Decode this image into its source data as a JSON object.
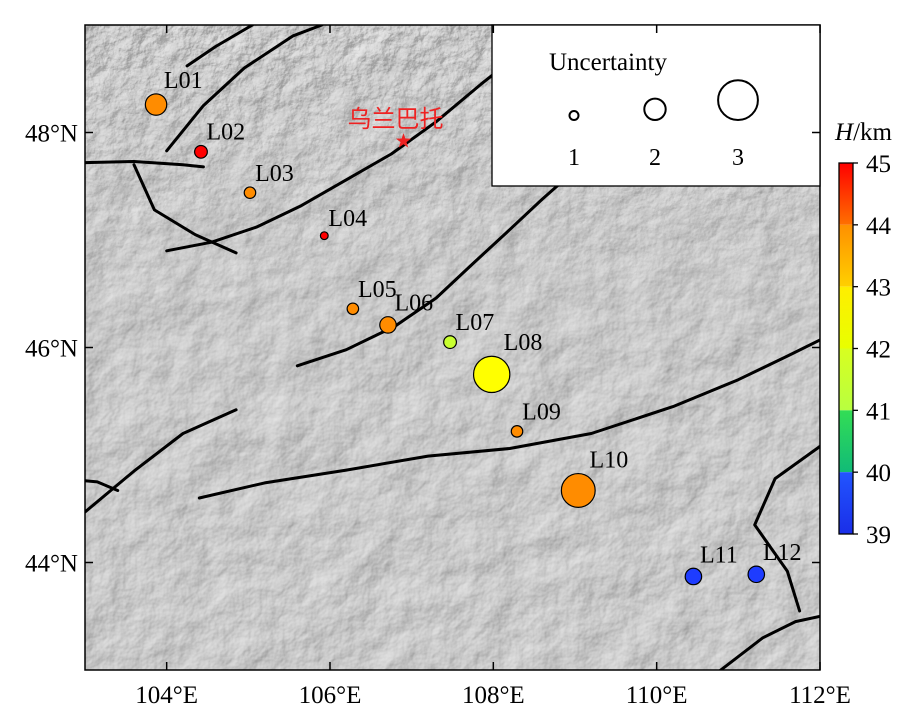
{
  "map": {
    "x_axis": {
      "min": 103,
      "max": 112,
      "ticks": [
        {
          "value": 104,
          "label": "104°E"
        },
        {
          "value": 106,
          "label": "106°E"
        },
        {
          "value": 108,
          "label": "108°E"
        },
        {
          "value": 110,
          "label": "110°E"
        },
        {
          "value": 112,
          "label": "112°E"
        }
      ]
    },
    "y_axis": {
      "min": 43,
      "max": 49,
      "ticks": [
        {
          "value": 44,
          "label": "44°N"
        },
        {
          "value": 46,
          "label": "46°N"
        },
        {
          "value": 48,
          "label": "48°N"
        }
      ]
    },
    "city": {
      "name": "乌兰巴托",
      "lon": 106.9,
      "lat": 47.92,
      "color": "#ee2222"
    },
    "stations": [
      {
        "id": "L01",
        "lon": 103.87,
        "lat": 48.26,
        "h": 43.6,
        "unc": 2.0
      },
      {
        "id": "L02",
        "lon": 104.42,
        "lat": 47.82,
        "h": 44.6,
        "unc": 1.3
      },
      {
        "id": "L03",
        "lon": 105.02,
        "lat": 47.44,
        "h": 43.4,
        "unc": 1.2
      },
      {
        "id": "L04",
        "lon": 105.93,
        "lat": 47.04,
        "h": 44.8,
        "unc": 0.9
      },
      {
        "id": "L05",
        "lon": 106.28,
        "lat": 46.36,
        "h": 43.6,
        "unc": 1.2
      },
      {
        "id": "L06",
        "lon": 106.71,
        "lat": 46.21,
        "h": 43.5,
        "unc": 1.6
      },
      {
        "id": "L07",
        "lon": 107.47,
        "lat": 46.05,
        "h": 41.8,
        "unc": 1.3
      },
      {
        "id": "L08",
        "lon": 107.98,
        "lat": 45.75,
        "h": 42.5,
        "unc": 3.2
      },
      {
        "id": "L09",
        "lon": 108.29,
        "lat": 45.22,
        "h": 43.4,
        "unc": 1.2
      },
      {
        "id": "L10",
        "lon": 109.04,
        "lat": 44.67,
        "h": 43.5,
        "unc": 3.0
      },
      {
        "id": "L11",
        "lon": 110.45,
        "lat": 43.87,
        "h": 39.3,
        "unc": 1.6
      },
      {
        "id": "L12",
        "lon": 111.22,
        "lat": 43.89,
        "h": 39.3,
        "unc": 1.6
      }
    ],
    "faults": [
      [
        [
          103,
          47.72
        ],
        [
          103.6,
          47.73
        ],
        [
          104.2,
          47.7
        ],
        [
          104.45,
          47.68
        ]
      ],
      [
        [
          104.0,
          47.83
        ],
        [
          104.45,
          48.25
        ],
        [
          104.95,
          48.6
        ],
        [
          105.55,
          48.9
        ],
        [
          105.9,
          49.0
        ]
      ],
      [
        [
          104.25,
          48.62
        ],
        [
          104.6,
          48.8
        ],
        [
          105.05,
          49.0
        ]
      ],
      [
        [
          103.6,
          47.7
        ],
        [
          103.85,
          47.28
        ],
        [
          104.35,
          47.05
        ],
        [
          104.85,
          46.88
        ]
      ],
      [
        [
          104.0,
          46.9
        ],
        [
          104.55,
          46.98
        ],
        [
          105.1,
          47.12
        ],
        [
          105.65,
          47.32
        ],
        [
          106.2,
          47.56
        ],
        [
          106.75,
          47.8
        ],
        [
          107.3,
          48.1
        ],
        [
          107.85,
          48.45
        ],
        [
          108.3,
          48.72
        ],
        [
          108.5,
          48.78
        ]
      ],
      [
        [
          105.6,
          45.83
        ],
        [
          106.2,
          45.98
        ],
        [
          106.8,
          46.2
        ],
        [
          107.3,
          46.46
        ],
        [
          107.75,
          46.78
        ],
        [
          108.15,
          47.06
        ],
        [
          108.6,
          47.38
        ],
        [
          109.15,
          47.75
        ],
        [
          109.6,
          48.0
        ],
        [
          110.0,
          48.42
        ]
      ],
      [
        [
          103.0,
          44.47
        ],
        [
          103.6,
          44.85
        ],
        [
          104.2,
          45.2
        ],
        [
          104.85,
          45.42
        ]
      ],
      [
        [
          103.0,
          44.76
        ],
        [
          103.15,
          44.75
        ],
        [
          103.4,
          44.67
        ]
      ],
      [
        [
          104.4,
          44.6
        ],
        [
          105.2,
          44.74
        ],
        [
          106.2,
          44.86
        ],
        [
          107.2,
          44.99
        ],
        [
          108.2,
          45.06
        ],
        [
          109.2,
          45.2
        ],
        [
          110.2,
          45.45
        ],
        [
          111.0,
          45.7
        ],
        [
          111.6,
          45.92
        ],
        [
          112.0,
          46.07
        ]
      ],
      [
        [
          110.7,
          42.95
        ],
        [
          111.3,
          43.3
        ],
        [
          111.7,
          43.45
        ],
        [
          112.0,
          43.5
        ]
      ],
      [
        [
          111.75,
          43.55
        ],
        [
          111.6,
          43.92
        ],
        [
          111.2,
          44.35
        ],
        [
          111.45,
          44.78
        ],
        [
          112.0,
          45.08
        ]
      ]
    ],
    "legend": {
      "title": "Uncertainty",
      "items": [
        {
          "label": "1",
          "unc": 1
        },
        {
          "label": "2",
          "unc": 2
        },
        {
          "label": "3",
          "unc": 3
        }
      ]
    },
    "colorbar": {
      "title_var": "H",
      "title_unit": "/km",
      "min": 39,
      "max": 45,
      "tick_labels": [
        "45",
        "44",
        "43",
        "42",
        "41",
        "40",
        "39"
      ],
      "colors": [
        {
          "from": 44,
          "to": 45,
          "color": "#ff0000",
          "top": "#ff0000",
          "bottom": "#ff7000"
        },
        {
          "from": 43,
          "to": 44,
          "color": "#ff8c00",
          "top": "#ff9000",
          "bottom": "#ffd000"
        },
        {
          "from": 42,
          "to": 43,
          "color": "#ffff00",
          "top": "#ffee00",
          "bottom": "#e8ff00"
        },
        {
          "from": 41,
          "to": 42,
          "color": "#c8ff30",
          "top": "#d8ff20",
          "bottom": "#b8ff40"
        },
        {
          "from": 40,
          "to": 41,
          "color": "#22c864",
          "top": "#33dd55",
          "bottom": "#11bb77"
        },
        {
          "from": 39,
          "to": 40,
          "color": "#1e3cff",
          "top": "#2255ff",
          "bottom": "#1a2ee8"
        }
      ]
    }
  }
}
